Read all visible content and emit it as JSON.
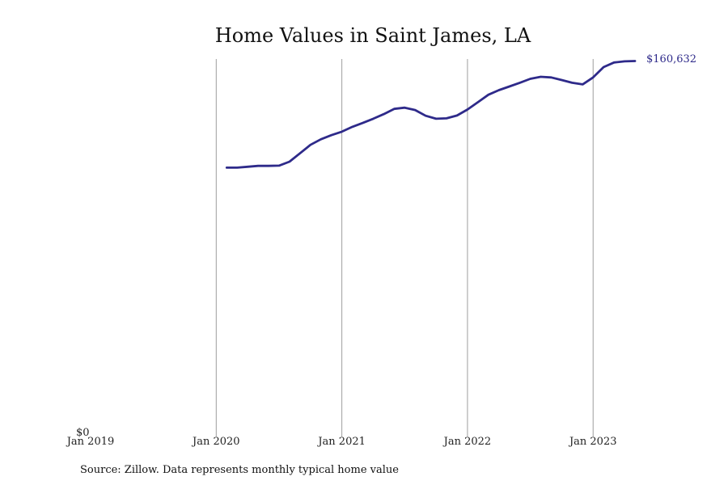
{
  "chart_data": {
    "type": "line",
    "title": "Home Values in Saint James, LA",
    "source": "Source: Zillow. Data represents monthly typical home value",
    "x_ticks": [
      {
        "date": "2019-01",
        "label": "Jan 2019"
      },
      {
        "date": "2020-01",
        "label": "Jan 2020"
      },
      {
        "date": "2021-01",
        "label": "Jan 2021"
      },
      {
        "date": "2022-01",
        "label": "Jan 2022"
      },
      {
        "date": "2023-01",
        "label": "Jan 2023"
      }
    ],
    "y_tick_label": "$0",
    "end_label": "$160,632",
    "line_color": "#2e2a8a",
    "grid": true,
    "xlim": [
      "2019-01",
      "2023-05"
    ],
    "ylim": [
      0,
      161500
    ],
    "series": [
      {
        "x": [
          "2020-02",
          "2020-03",
          "2020-04",
          "2020-05",
          "2020-06",
          "2020-07",
          "2020-08",
          "2020-09",
          "2020-10",
          "2020-11",
          "2020-12",
          "2021-01",
          "2021-02",
          "2021-03",
          "2021-04",
          "2021-05",
          "2021-06",
          "2021-07",
          "2021-08",
          "2021-09",
          "2021-10",
          "2021-11",
          "2021-12",
          "2022-01",
          "2022-02",
          "2022-03",
          "2022-04",
          "2022-05",
          "2022-06",
          "2022-07",
          "2022-08",
          "2022-09",
          "2022-10",
          "2022-11",
          "2022-12",
          "2023-01",
          "2023-02",
          "2023-03",
          "2023-04",
          "2023-05"
        ],
        "y": [
          114400,
          114400,
          114800,
          115200,
          115200,
          115300,
          117000,
          120600,
          124300,
          126700,
          128500,
          130000,
          132100,
          133800,
          135600,
          137600,
          139900,
          140400,
          139400,
          136900,
          135600,
          135800,
          137000,
          139600,
          142800,
          146000,
          148000,
          149600,
          151200,
          152900,
          153800,
          153500,
          152400,
          151200,
          150500,
          153500,
          158000,
          160000,
          160500,
          160632
        ]
      }
    ]
  }
}
